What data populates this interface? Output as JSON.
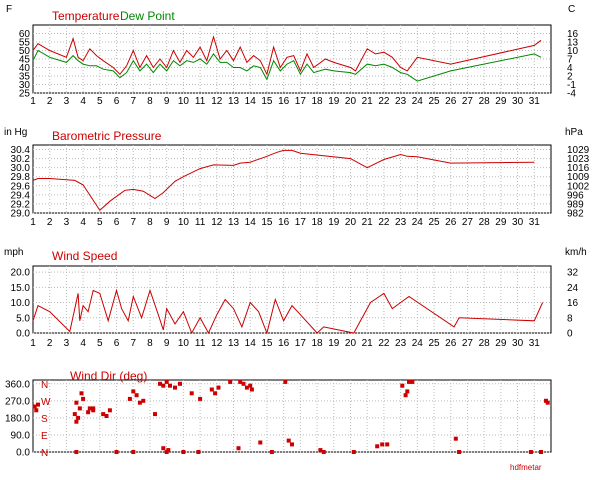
{
  "footer_credit": "hdfmetar",
  "chart_data": [
    {
      "type": "line",
      "title": "Temperature",
      "title2": "Dew Point",
      "ylabel_left": "F",
      "ylabel_right": "C",
      "ylim": [
        25,
        65
      ],
      "yticks_left": [
        "60",
        "55",
        "50",
        "45",
        "40",
        "35",
        "30",
        "25"
      ],
      "yticks_right": [
        "16",
        "13",
        "10",
        "7",
        "4",
        "2",
        "-1",
        "-4"
      ],
      "xticks": [
        "1",
        "2",
        "3",
        "4",
        "5",
        "6",
        "7",
        "8",
        "9",
        "10",
        "11",
        "12",
        "13",
        "14",
        "15",
        "16",
        "17",
        "18",
        "19",
        "20",
        "21",
        "22",
        "23",
        "24",
        "25",
        "26",
        "27",
        "28",
        "29",
        "30",
        "31"
      ],
      "colors": {
        "temperature": "#cc0000",
        "dewpoint": "#008800"
      },
      "series": [
        {
          "name": "Temperature",
          "x": [
            1,
            1.3,
            2,
            3,
            3.4,
            3.7,
            4,
            4.4,
            4.8,
            5.2,
            5.8,
            6.2,
            6.6,
            7,
            7.4,
            7.8,
            8.2,
            8.6,
            9,
            9.4,
            9.8,
            10.2,
            10.6,
            11,
            11.4,
            11.8,
            12.2,
            12.6,
            13,
            13.4,
            13.8,
            14.2,
            14.6,
            15,
            15.4,
            15.8,
            16.2,
            16.6,
            17,
            17.4,
            17.8,
            18.5,
            19,
            20,
            20.3,
            21,
            21.5,
            22,
            22.5,
            23,
            23.4,
            24,
            26,
            31,
            31.4
          ],
          "y": [
            50,
            54,
            50,
            46,
            57,
            46,
            44,
            51,
            47,
            44,
            40,
            36,
            41,
            50,
            40,
            47,
            40,
            45,
            40,
            50,
            43,
            50,
            46,
            52,
            44,
            58,
            45,
            50,
            44,
            52,
            43,
            47,
            44,
            36,
            52,
            40,
            46,
            47,
            38,
            48,
            40,
            45,
            43,
            40,
            38,
            51,
            48,
            49,
            46,
            40,
            38,
            46,
            42,
            53,
            56
          ]
        },
        {
          "name": "Dew Point",
          "x": [
            1,
            1.3,
            2,
            3,
            3.4,
            3.7,
            4,
            4.4,
            4.8,
            5.2,
            5.8,
            6.2,
            6.6,
            7,
            7.4,
            7.8,
            8.2,
            8.6,
            9,
            9.4,
            9.8,
            10.2,
            10.6,
            11,
            11.4,
            11.8,
            12.2,
            12.6,
            13,
            13.4,
            13.8,
            14.2,
            14.6,
            15,
            15.4,
            15.8,
            16.2,
            16.6,
            17,
            17.4,
            17.8,
            18.5,
            19,
            20,
            20.3,
            21,
            21.5,
            22,
            22.5,
            23,
            23.4,
            24,
            26,
            31,
            31.4
          ],
          "y": [
            44,
            50,
            46,
            43,
            47,
            44,
            42,
            41,
            41,
            39,
            38,
            34,
            37,
            44,
            38,
            42,
            37,
            42,
            38,
            44,
            41,
            44,
            43,
            45,
            42,
            48,
            43,
            43,
            40,
            40,
            38,
            41,
            40,
            33,
            44,
            38,
            42,
            44,
            36,
            42,
            37,
            39,
            38,
            37,
            36,
            42,
            41,
            42,
            40,
            37,
            36,
            32,
            38,
            48,
            46
          ]
        }
      ]
    },
    {
      "type": "line",
      "title": "Barometric Pressure",
      "ylabel_left": "in Hg",
      "ylabel_right": "hPa",
      "ylim": [
        29.0,
        30.5
      ],
      "yticks_left": [
        "30.4",
        "30.2",
        "30.0",
        "29.8",
        "29.6",
        "29.4",
        "29.2",
        "29.0"
      ],
      "yticks_right": [
        "1029",
        "1023",
        "1016",
        "1009",
        "1002",
        "996",
        "989",
        "982"
      ],
      "colors": {
        "pressure": "#cc0000"
      },
      "series": [
        {
          "name": "Barometric Pressure",
          "x": [
            1,
            1.3,
            2,
            3.5,
            4,
            5,
            5.6,
            6.5,
            7,
            7.6,
            8.3,
            8.8,
            9.5,
            10,
            11,
            11.8,
            13,
            13.4,
            14,
            15,
            15.6,
            16,
            16.5,
            17,
            20,
            21,
            22,
            23,
            23.4,
            24,
            26,
            31
          ],
          "y": [
            29.72,
            29.76,
            29.76,
            29.72,
            29.62,
            29.06,
            29.26,
            29.5,
            29.52,
            29.48,
            29.32,
            29.45,
            29.7,
            29.8,
            29.98,
            30.06,
            30.05,
            30.1,
            30.12,
            30.25,
            30.34,
            30.38,
            30.38,
            30.32,
            30.2,
            30.0,
            30.18,
            30.29,
            30.25,
            30.24,
            30.1,
            30.12
          ]
        }
      ]
    },
    {
      "type": "line",
      "title": "Wind Speed",
      "ylabel_left": "mph",
      "ylabel_right": "km/h",
      "ylim": [
        0,
        22
      ],
      "yticks_left": [
        "20.0",
        "15.0",
        "10.0",
        "5.0",
        "0.0"
      ],
      "yticks_right": [
        "32",
        "24",
        "16",
        "8",
        "0"
      ],
      "colors": {
        "wind": "#cc0000"
      },
      "series": [
        {
          "name": "Wind Speed",
          "x": [
            1,
            1.3,
            2,
            3.2,
            3.5,
            3.7,
            3.8,
            4,
            4.3,
            4.6,
            5,
            5.5,
            6,
            6.3,
            6.7,
            7,
            7.5,
            8,
            8.5,
            8.8,
            9,
            9.5,
            10,
            10.5,
            11,
            11.5,
            12,
            12.5,
            13,
            13.5,
            14,
            14.5,
            15,
            15.5,
            16,
            16.5,
            17,
            18,
            18.4,
            20.2,
            21.2,
            22,
            22.5,
            23,
            23.5,
            26.2,
            26.5,
            31,
            31.5
          ],
          "y": [
            4,
            9,
            7,
            0.5,
            8,
            13,
            4,
            9,
            7,
            14,
            13,
            4,
            14,
            8,
            4,
            12,
            5,
            14,
            6,
            1,
            8,
            3,
            7,
            0,
            5,
            0,
            6,
            11,
            8,
            2,
            10,
            7,
            0,
            11,
            4,
            9,
            6,
            0,
            2,
            0,
            10,
            13,
            8,
            10,
            12,
            2,
            5,
            4,
            10
          ]
        }
      ]
    },
    {
      "type": "scatter",
      "title": "Wind Dir (deg)",
      "ylim": [
        0,
        380
      ],
      "yticks_left": [
        "360.0",
        "270.0",
        "180.0",
        "90.0",
        "0.0"
      ],
      "dir_labels": [
        "N",
        "W",
        "S",
        "E",
        "N"
      ],
      "colors": {
        "dir": "#cc0000"
      },
      "series": [
        {
          "name": "Wind Dir",
          "x": [
            1.1,
            1.2,
            1.3,
            3.5,
            3.6,
            3.7,
            3.8,
            3.9,
            4.0,
            4.3,
            4.4,
            4.6,
            5.2,
            5.4,
            5.6,
            6.8,
            7.0,
            7.2,
            7.4,
            7.6,
            8.3,
            8.6,
            8.8,
            9.0,
            9.2,
            9.5,
            9.8,
            10.5,
            11.0,
            11.7,
            11.9,
            12.1,
            12.8,
            13.4,
            13.6,
            13.8,
            14.0,
            14.1,
            16.1,
            18.2,
            23.1,
            23.3,
            23.4,
            23.5,
            23.7,
            31.7,
            31.8,
            3.6,
            4.6,
            8.8,
            9.1,
            13.3,
            14.6,
            16.3,
            16.5,
            21.6,
            21.9,
            22.2,
            26.3,
            3.6,
            6.0,
            7.0,
            9.0,
            10.0,
            10.9,
            15.3,
            18.4,
            20.2,
            26.5,
            30.8,
            31.4
          ],
          "y": [
            240,
            220,
            250,
            200,
            260,
            180,
            230,
            310,
            280,
            210,
            230,
            220,
            200,
            190,
            220,
            280,
            320,
            300,
            260,
            270,
            200,
            360,
            350,
            370,
            350,
            340,
            360,
            310,
            280,
            330,
            310,
            340,
            370,
            370,
            360,
            340,
            350,
            330,
            370,
            10,
            350,
            300,
            320,
            370,
            370,
            270,
            260,
            160,
            230,
            20,
            10,
            20,
            50,
            60,
            40,
            30,
            40,
            40,
            70,
            0,
            0,
            0,
            0,
            0,
            0,
            0,
            0,
            0,
            0,
            0,
            0
          ]
        }
      ]
    }
  ]
}
